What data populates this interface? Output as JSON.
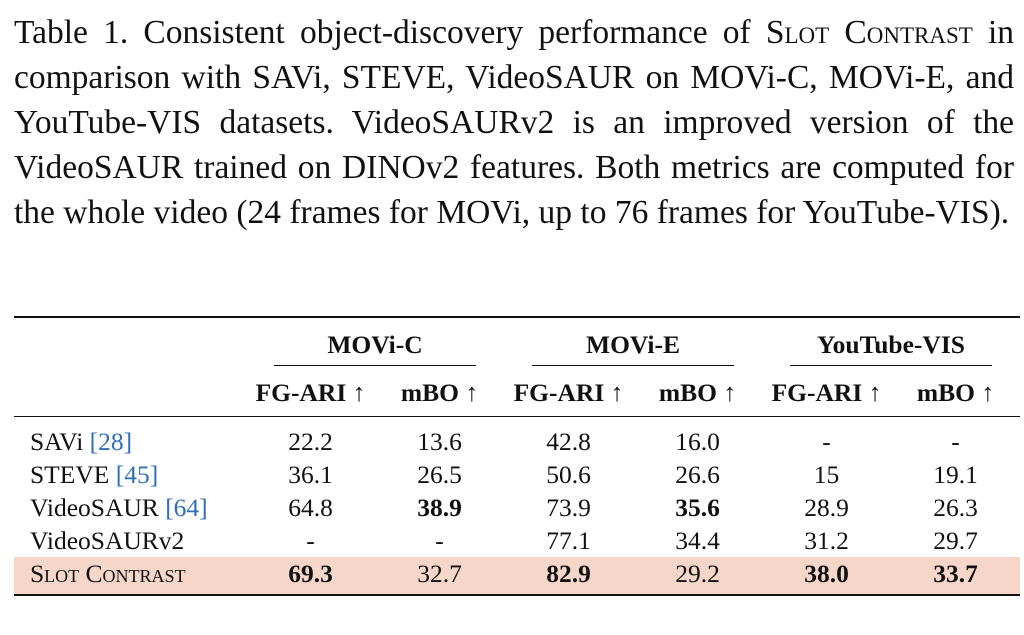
{
  "caption": {
    "lead": "Table 1. Consistent object-discovery performance of ",
    "method_name": "Slot Contrast",
    "rest": " in comparison with SAVi, STEVE, VideoSAUR on MOVi-C, MOVi-E, and YouTube-VIS datasets.  VideoSAURv2 is an improved version of the VideoSAUR trained on DINOv2 features. Both metrics are computed for the whole video (24 frames for MOVi, up to 76 frames for YouTube-VIS)."
  },
  "table": {
    "groups": [
      "MOVi-C",
      "MOVi-E",
      "YouTube-VIS"
    ],
    "metrics": [
      "FG-ARI ↑",
      "mBO ↑",
      "FG-ARI ↑",
      "mBO ↑",
      "FG-ARI ↑",
      "mBO ↑"
    ],
    "rows": [
      {
        "name": "SAVi",
        "ref": "[28]",
        "values": [
          "22.2",
          "13.6",
          "42.8",
          "16.0",
          "-",
          "-"
        ]
      },
      {
        "name": "STEVE",
        "ref": "[45]",
        "values": [
          "36.1",
          "26.5",
          "50.6",
          "26.6",
          "15",
          "19.1"
        ]
      },
      {
        "name": "VideoSAUR",
        "ref": "[64]",
        "values": [
          "64.8",
          "38.9",
          "73.9",
          "35.6",
          "28.9",
          "26.3"
        ]
      },
      {
        "name": "VideoSAURv2",
        "ref": "",
        "values": [
          "-",
          "-",
          "77.1",
          "34.4",
          "31.2",
          "29.7"
        ]
      },
      {
        "name": "Slot Contrast",
        "ref": "",
        "values": [
          "69.3",
          "32.7",
          "82.9",
          "29.2",
          "38.0",
          "33.7"
        ]
      }
    ],
    "highlight_color": "#f5d6c8",
    "ref_color": "#2f6fb7"
  }
}
